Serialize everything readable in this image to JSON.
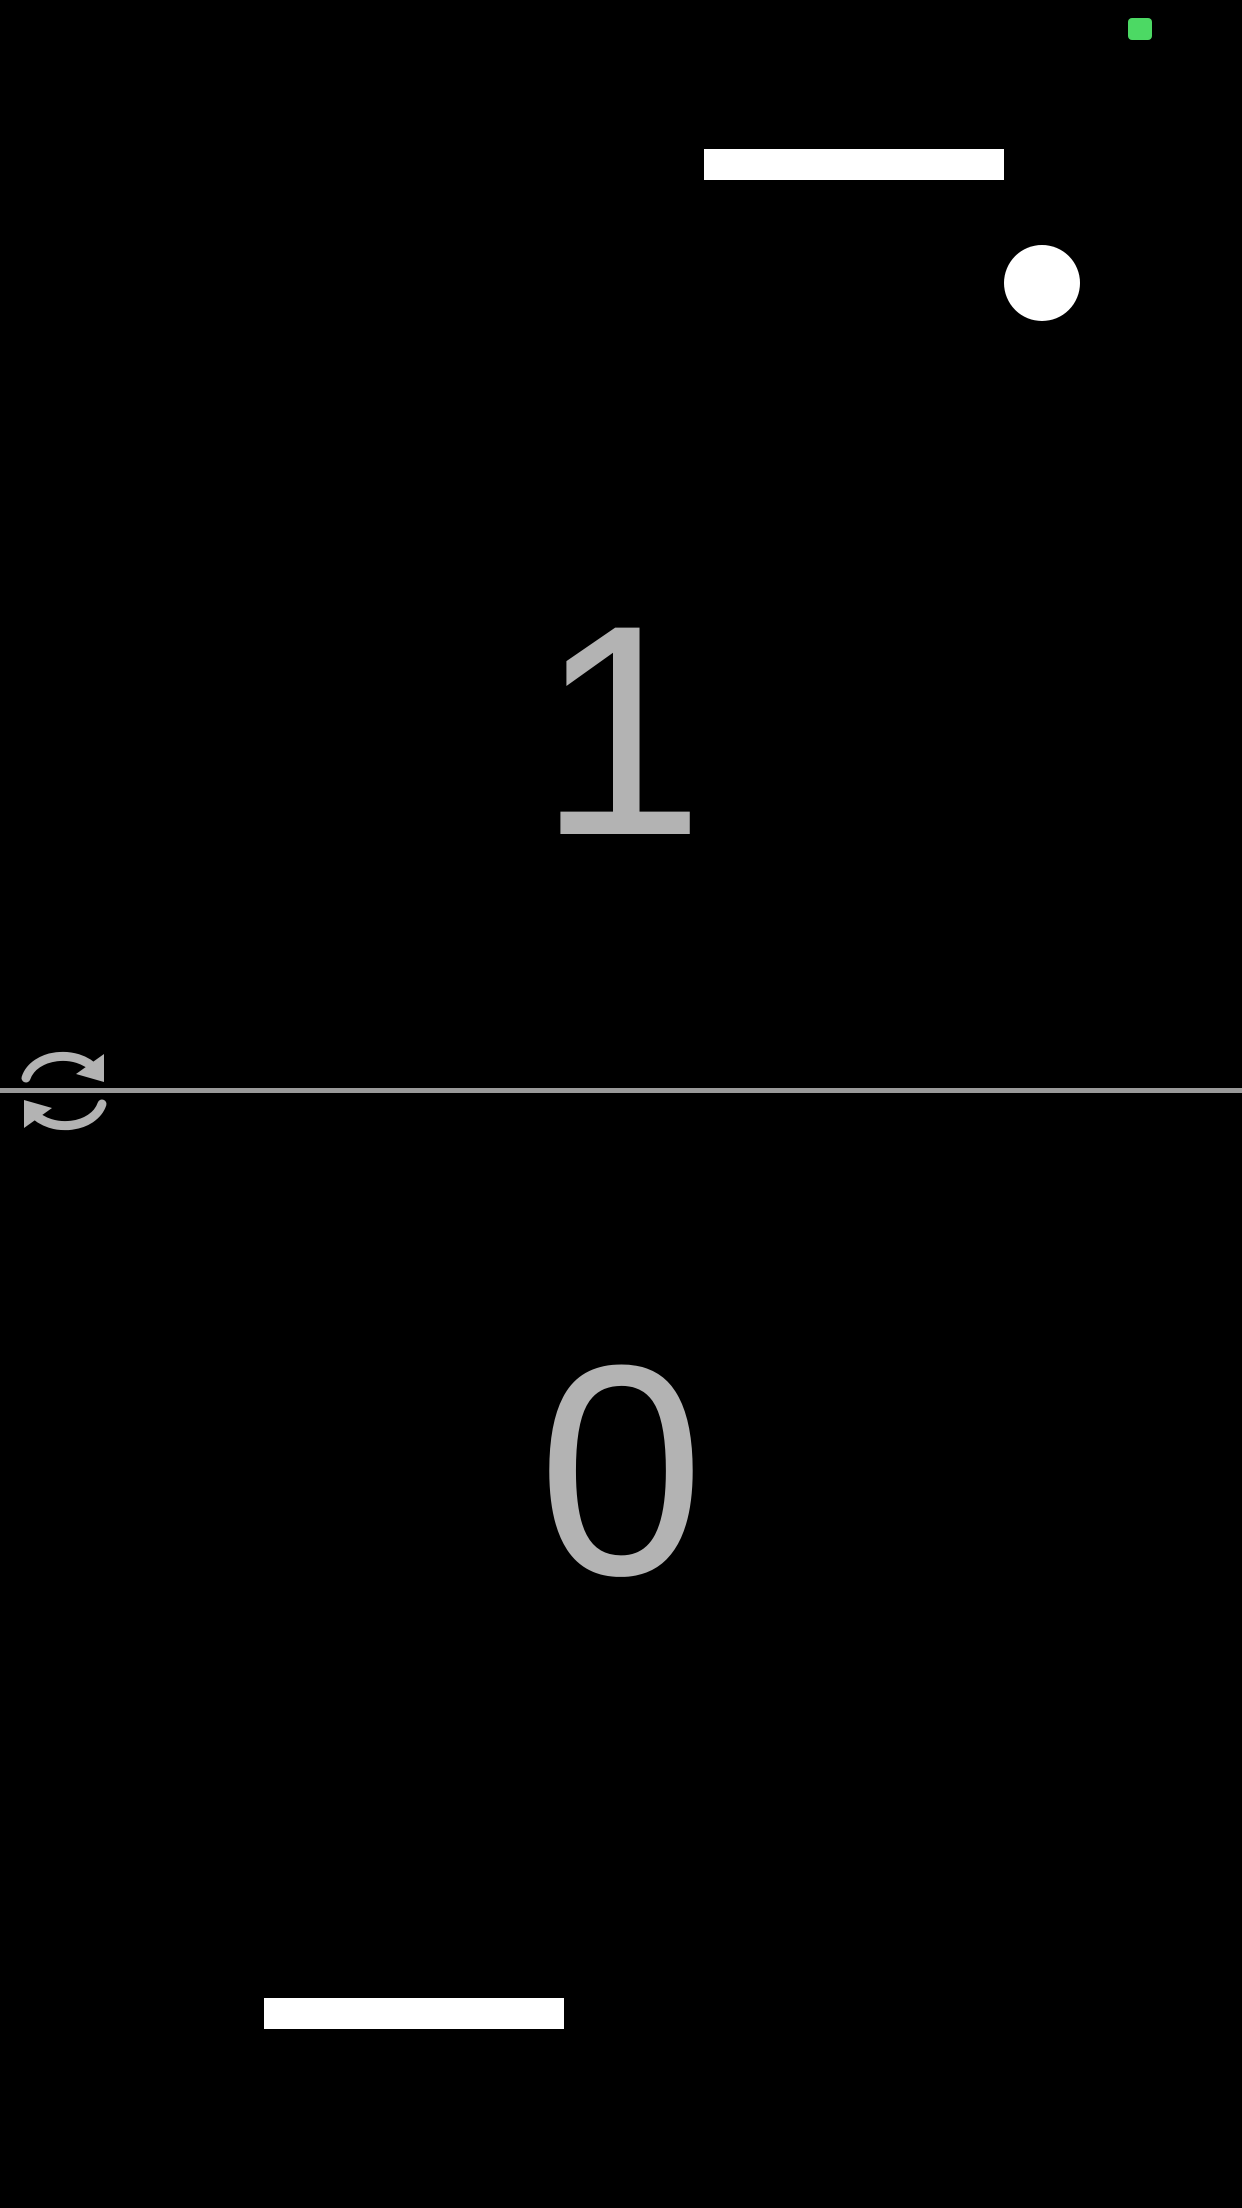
{
  "game": {
    "score_opponent": "1",
    "score_player": "0"
  },
  "icons": {
    "status": "status-indicator-icon",
    "restart": "restart-icon"
  },
  "colors": {
    "background": "#000000",
    "paddle": "#ffffff",
    "ball": "#ffffff",
    "score": "#b3b3b3",
    "midline": "#999999",
    "restart_icon": "#b3b3b3",
    "status_indicator": "#4cd964"
  }
}
